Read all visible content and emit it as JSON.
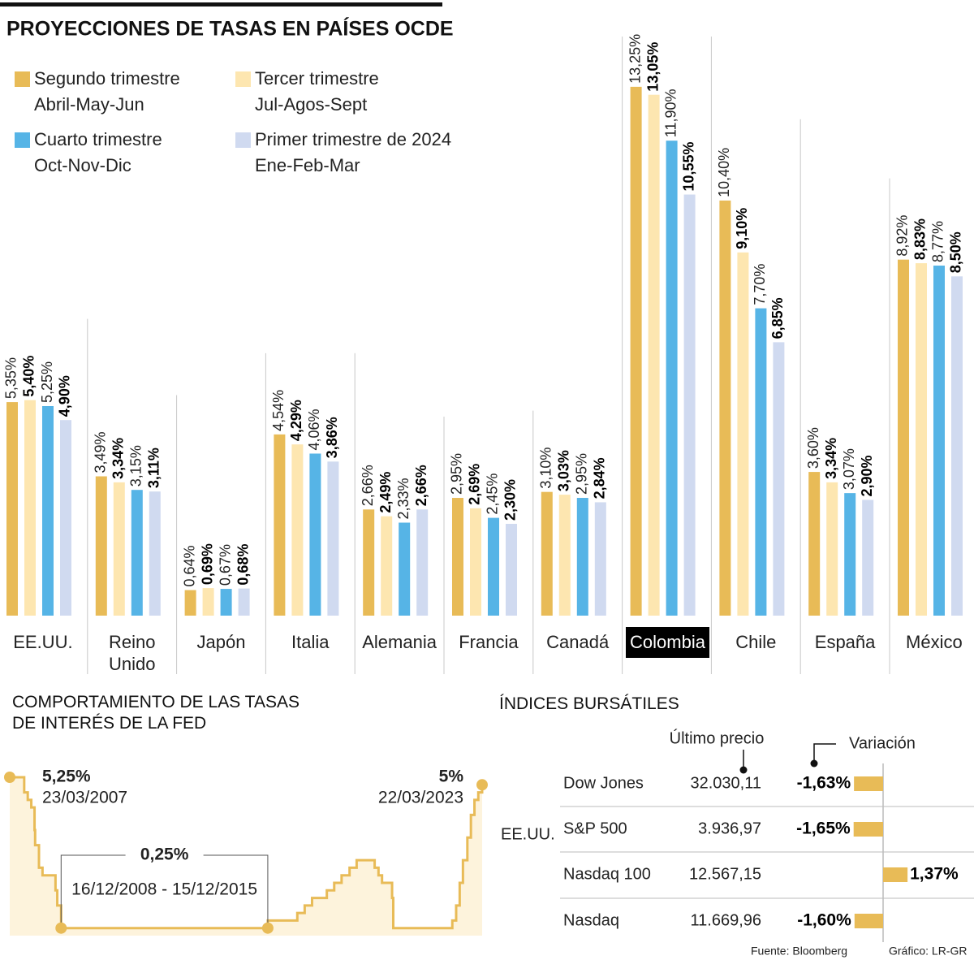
{
  "chart_data": [
    {
      "type": "bar",
      "title": "PROYECCIONES DE TASAS EN PAÍSES OCDE",
      "categories": [
        "EE.UU.",
        "Reino Unido",
        "Japón",
        "Italia",
        "Alemania",
        "Francia",
        "Canadá",
        "Colombia",
        "Chile",
        "España",
        "México"
      ],
      "highlight_index": 7,
      "ylim": [
        0,
        14
      ],
      "series": [
        {
          "name": "Segundo trimestre",
          "period": "Abril-May-Jun",
          "color": "#e8bb57",
          "bold_labels": false,
          "values": [
            5.35,
            3.49,
            0.64,
            4.54,
            2.66,
            2.95,
            3.1,
            13.25,
            10.4,
            3.6,
            8.92
          ],
          "value_labels": [
            "5,35%",
            "3,49%",
            "0,64%",
            "4,54%",
            "2,66%",
            "2,95%",
            "3,10%",
            "13,25%",
            "10,40%",
            "3,60%",
            "8,92%"
          ]
        },
        {
          "name": "Tercer trimestre",
          "period": "Jul-Agos-Sept",
          "color": "#fde6b0",
          "bold_labels": true,
          "values": [
            5.4,
            3.34,
            0.69,
            4.29,
            2.49,
            2.69,
            3.03,
            13.05,
            9.1,
            3.34,
            8.83
          ],
          "value_labels": [
            "5,40%",
            "3,34%",
            "0,69%",
            "4,29%",
            "2,49%",
            "2,69%",
            "3,03%",
            "13,05%",
            "9,10%",
            "3,34%",
            "8,83%"
          ]
        },
        {
          "name": "Cuarto trimestre",
          "period": "Oct-Nov-Dic",
          "color": "#56b4e6",
          "bold_labels": false,
          "values": [
            5.25,
            3.15,
            0.67,
            4.06,
            2.33,
            2.45,
            2.95,
            11.9,
            7.7,
            3.07,
            8.77
          ],
          "value_labels": [
            "5,25%",
            "3,15%",
            "0,67%",
            "4,06%",
            "2,33%",
            "2,45%",
            "2,95%",
            "11,90%",
            "7,70%",
            "3,07%",
            "8,77%"
          ]
        },
        {
          "name": "Primer trimestre de 2024",
          "period": "Ene-Feb-Mar",
          "color": "#d0daf0",
          "bold_labels": true,
          "values": [
            4.9,
            3.11,
            0.68,
            3.86,
            2.66,
            2.3,
            2.84,
            10.55,
            6.85,
            2.9,
            8.5
          ],
          "value_labels": [
            "4,90%",
            "3,11%",
            "0,68%",
            "3,86%",
            "2,66%",
            "2,30%",
            "2,84%",
            "10,55%",
            "6,85%",
            "2,90%",
            "8,50%"
          ]
        }
      ]
    },
    {
      "type": "line",
      "step": true,
      "title": "COMPORTAMIENTO DE LAS TASAS DE INTERÉS DE LA FED",
      "color": "#e8bb57",
      "fill": "#fdf3dc",
      "xlim": [
        2007.22,
        2023.22
      ],
      "ylim": [
        0,
        5.25
      ],
      "x": [
        2007.22,
        2007.71,
        2007.83,
        2007.95,
        2008.06,
        2008.08,
        2008.21,
        2008.33,
        2008.77,
        2008.83,
        2008.96,
        2015.96,
        2016.96,
        2017.21,
        2017.46,
        2017.96,
        2018.21,
        2018.46,
        2018.73,
        2018.97,
        2019.58,
        2019.71,
        2019.83,
        2020.17,
        2020.21,
        2022.21,
        2022.34,
        2022.46,
        2022.57,
        2022.72,
        2022.84,
        2022.96,
        2023.09,
        2023.22
      ],
      "values": [
        5.25,
        4.75,
        4.5,
        4.25,
        3.5,
        3.0,
        2.25,
        2.0,
        1.5,
        1.0,
        0.25,
        0.5,
        0.75,
        1.0,
        1.25,
        1.5,
        1.75,
        2.0,
        2.25,
        2.5,
        2.25,
        2.0,
        1.75,
        1.25,
        0.25,
        0.5,
        1.0,
        1.75,
        2.5,
        3.25,
        4.0,
        4.5,
        4.75,
        5.0
      ],
      "annotations": [
        {
          "value": 5.25,
          "label": "5,25%",
          "date": "23/03/2007"
        },
        {
          "value": 0.25,
          "label": "0,25%",
          "date": "16/12/2008 - 15/12/2015"
        },
        {
          "value": 5,
          "label": "5%",
          "date": "22/03/2023"
        }
      ]
    },
    {
      "type": "hbar-table",
      "title": "ÍNDICES BURSÁTILES",
      "group": "EE.UU.",
      "columns": [
        "Último precio",
        "Variación"
      ],
      "categories": [
        "Dow Jones",
        "S&P 500",
        "Nasdaq 100",
        "Nasdaq"
      ],
      "prices": [
        "32.030,11",
        "3.936,97",
        "12.567,15",
        "11.669,96"
      ],
      "values": [
        -1.63,
        -1.65,
        1.37,
        -1.6
      ],
      "value_labels": [
        "-1,63%",
        "-1,65%",
        "1,37%",
        "-1,60%"
      ],
      "color": "#e8bb57",
      "xlim": [
        -2,
        2
      ]
    }
  ],
  "footer": {
    "source": "Fuente: Bloomberg",
    "credit": "Gráfico: LR-GR"
  }
}
